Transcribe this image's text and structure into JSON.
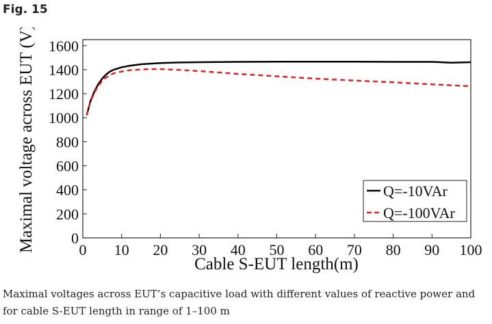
{
  "figure": {
    "label": "Fig. 15"
  },
  "caption": "Maximal voltages across EUT’s capacitive load with different values of reactive power and for cable S-EUT length in range of 1–100 m",
  "chart_data": {
    "type": "line",
    "title": "",
    "xlabel": "Cable S-EUT length(m)",
    "ylabel": "Maximal voltage across EUT (V)",
    "xlim": [
      0,
      100
    ],
    "ylim": [
      0,
      1650
    ],
    "xticks": [
      0,
      10,
      20,
      30,
      40,
      50,
      60,
      70,
      80,
      90,
      100
    ],
    "yticks": [
      0,
      200,
      400,
      600,
      800,
      1000,
      1200,
      1400,
      1600
    ],
    "grid": false,
    "legend_position": "bottom-right",
    "series": [
      {
        "name": "Q=-10VAr",
        "color": "#000000",
        "line_style": "solid",
        "x": [
          1,
          2,
          3,
          4,
          5,
          6,
          7,
          8,
          10,
          12,
          15,
          20,
          25,
          30,
          40,
          50,
          60,
          70,
          80,
          90,
          95,
          100
        ],
        "y": [
          1020,
          1140,
          1220,
          1280,
          1325,
          1360,
          1385,
          1400,
          1420,
          1432,
          1445,
          1455,
          1460,
          1462,
          1465,
          1466,
          1466,
          1466,
          1465,
          1465,
          1458,
          1462
        ]
      },
      {
        "name": "Q=-100VAr",
        "color": "#e02020",
        "line_style": "dashed",
        "x": [
          1,
          2,
          3,
          4,
          5,
          6,
          7,
          8,
          10,
          12,
          15,
          18,
          20,
          25,
          30,
          40,
          50,
          60,
          70,
          80,
          90,
          100
        ],
        "y": [
          1020,
          1135,
          1210,
          1265,
          1305,
          1335,
          1355,
          1370,
          1385,
          1395,
          1402,
          1405,
          1405,
          1398,
          1388,
          1365,
          1345,
          1325,
          1310,
          1295,
          1278,
          1262
        ]
      }
    ]
  }
}
